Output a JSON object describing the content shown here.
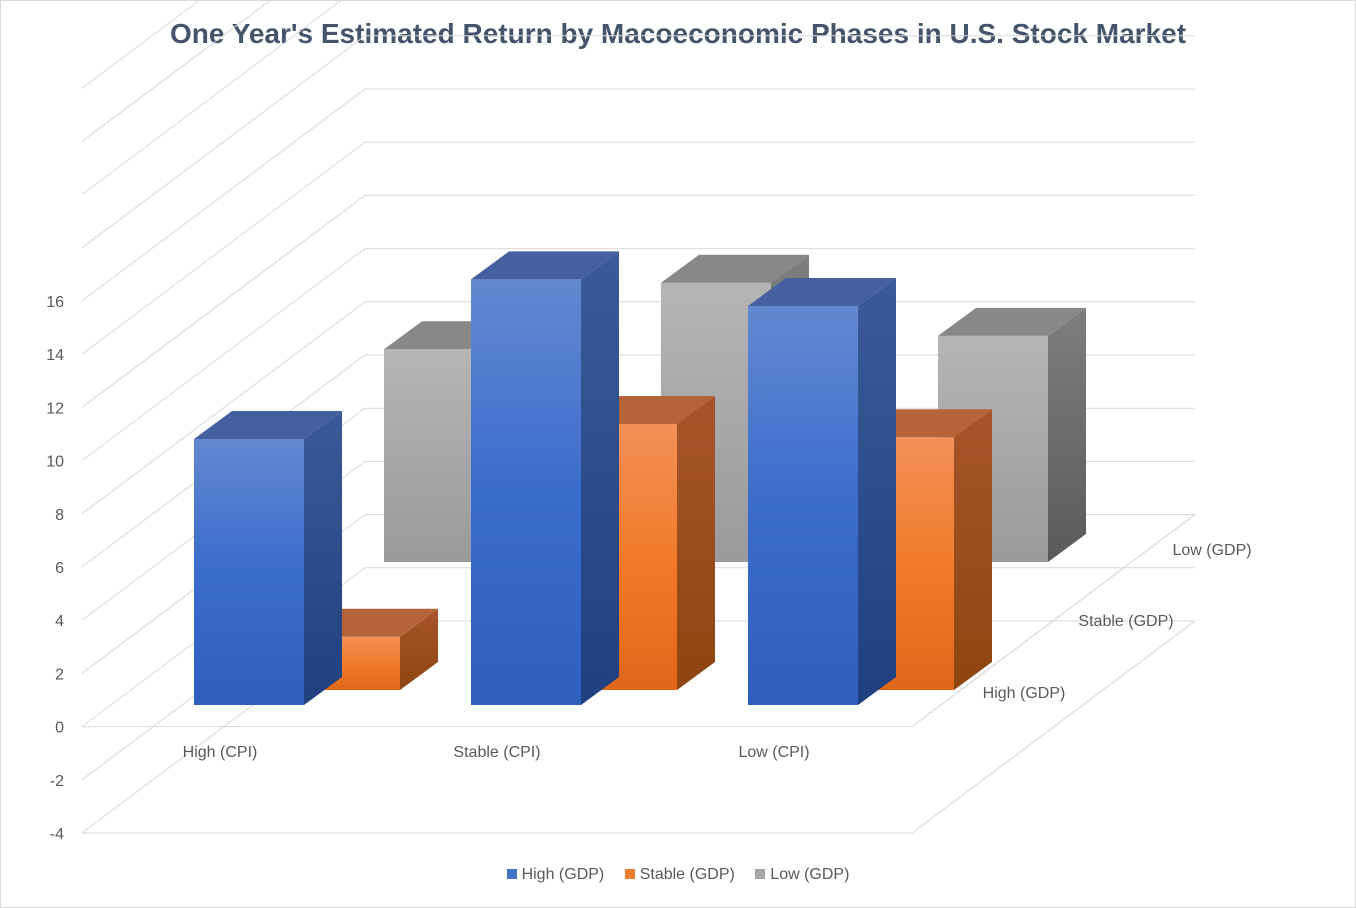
{
  "chart_data": {
    "type": "bar",
    "subtype": "3d-column",
    "title": "One Year's Estimated Return by Macoeconomic Phases in U.S. Stock Market",
    "categories": [
      "High (CPI)",
      "Stable (CPI)",
      "Low (CPI)"
    ],
    "series": [
      {
        "name": "High (GDP)",
        "values": [
          10,
          16,
          15
        ],
        "color": "#4472c4"
      },
      {
        "name": "Stable  (GDP)",
        "values": [
          2,
          10,
          9.5
        ],
        "color": "#ed7d31"
      },
      {
        "name": "Low  (GDP)",
        "values": [
          8,
          10.5,
          8.5
        ],
        "color": "#a5a5a5"
      }
    ],
    "y_ticks": [
      "-4",
      "-2",
      "0",
      "2",
      "4",
      "6",
      "8",
      "10",
      "12",
      "14",
      "16"
    ],
    "ylim": [
      -4,
      16
    ],
    "grid": true,
    "legend": "bottom",
    "depth_labels": [
      "High (GDP)",
      "Stable  (GDP)",
      "Low  (GDP)"
    ]
  }
}
